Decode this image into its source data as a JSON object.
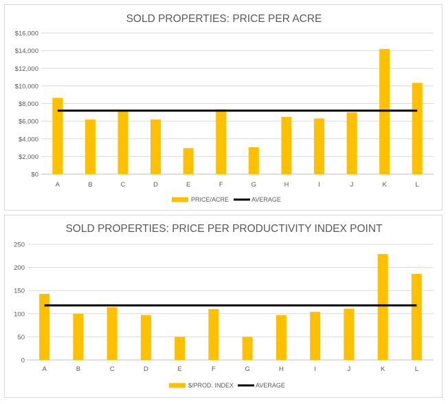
{
  "chart_data": [
    {
      "type": "bar",
      "title": "SOLD PROPERTIES: PRICE PER ACRE",
      "categories": [
        "A",
        "B",
        "C",
        "D",
        "E",
        "F",
        "G",
        "H",
        "I",
        "J",
        "K",
        "L"
      ],
      "series": [
        {
          "name": "PRICE/ACRE",
          "values": [
            8650,
            6200,
            7100,
            6200,
            2950,
            7350,
            3050,
            6500,
            6300,
            7000,
            14200,
            10350
          ],
          "color": "#FFC000"
        }
      ],
      "average": {
        "name": "AVERAGE",
        "value": 7200,
        "color": "#000000"
      },
      "ylim": [
        0,
        16000
      ],
      "yticks": [
        0,
        2000,
        4000,
        6000,
        8000,
        10000,
        12000,
        14000,
        16000
      ],
      "ytick_labels": [
        "$0",
        "$2,000",
        "$4,000",
        "$6,000",
        "$8,000",
        "$10,000",
        "$12,000",
        "$14,000",
        "$16,000"
      ],
      "grid": true,
      "legend": "bottom"
    },
    {
      "type": "bar",
      "title": "SOLD PROPERTIES: PRICE PER PRODUCTIVITY INDEX  POINT",
      "categories": [
        "A",
        "B",
        "C",
        "D",
        "E",
        "F",
        "G",
        "H",
        "I",
        "J",
        "K",
        "L"
      ],
      "series": [
        {
          "name": "$/PROD. INDEX",
          "values": [
            143,
            100,
            114,
            97,
            50,
            110,
            50,
            97,
            104,
            111,
            229,
            186
          ],
          "color": "#FFC000"
        }
      ],
      "average": {
        "name": "AVERAGE",
        "value": 118,
        "color": "#000000"
      },
      "ylim": [
        0,
        250
      ],
      "yticks": [
        0,
        50,
        100,
        150,
        200,
        250
      ],
      "ytick_labels": [
        "0",
        "50",
        "100",
        "150",
        "200",
        "250"
      ],
      "grid": true,
      "legend": "bottom"
    }
  ]
}
